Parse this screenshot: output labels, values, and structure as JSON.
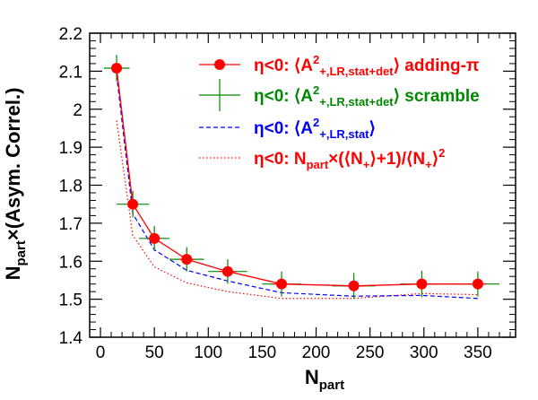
{
  "chart_data": {
    "type": "scatter",
    "xlabel": "N",
    "xlabel_sub": "part",
    "ylabel": "N",
    "ylabel_sub": "part",
    "ylabel_rest": "×(Asym. Correl.)",
    "xlim": [
      -10,
      385
    ],
    "ylim": [
      1.4,
      2.2
    ],
    "xticks": [
      0,
      50,
      100,
      150,
      200,
      250,
      300,
      350
    ],
    "yticks": [
      1.4,
      1.5,
      1.6,
      1.7,
      1.8,
      1.9,
      2.0,
      2.1,
      2.2
    ],
    "ytick_labels": [
      "1.4",
      "1.5",
      "1.6",
      "1.7",
      "1.8",
      "1.9",
      "2",
      "2.1",
      "2.2"
    ],
    "grid": false,
    "legend_position": "top-right",
    "series": [
      {
        "key": "adding",
        "color": "#ff0000",
        "style": "line-marker",
        "legend": {
          "pre": "η<0: ⟨A",
          "sup": "2",
          "sub": "+,LR,stat+det",
          "post": "⟩ adding-π"
        },
        "x": [
          15,
          30,
          50,
          80,
          118,
          168,
          235,
          298,
          350
        ],
        "y": [
          2.108,
          1.75,
          1.66,
          1.605,
          1.573,
          1.54,
          1.535,
          1.54,
          1.54
        ],
        "xerr": [
          3,
          4,
          6,
          7,
          8,
          9,
          10,
          9,
          8
        ]
      },
      {
        "key": "scramble",
        "color": "#008800",
        "style": "errorbar",
        "legend": {
          "pre": "η<0: ⟨A",
          "sup": "2",
          "sub": "+,LR,stat+det",
          "post": "⟩ scramble"
        },
        "x": [
          15,
          30,
          50,
          80,
          118,
          168,
          235,
          298,
          350
        ],
        "y": [
          2.108,
          1.75,
          1.66,
          1.605,
          1.573,
          1.54,
          1.535,
          1.54,
          1.54
        ],
        "yerr": [
          0.035,
          0.035,
          0.033,
          0.032,
          0.032,
          0.033,
          0.034,
          0.035,
          0.033
        ],
        "xerr": [
          12,
          15,
          14,
          16,
          18,
          18,
          20,
          20,
          20
        ]
      },
      {
        "key": "stat",
        "color": "#0000ff",
        "style": "dashed",
        "legend": {
          "pre": "η<0: ⟨A",
          "sup": "2",
          "sub": "+,LR,stat",
          "post": "⟩"
        },
        "x": [
          15,
          30,
          50,
          80,
          118,
          168,
          235,
          298,
          350
        ],
        "y": [
          2.09,
          1.725,
          1.63,
          1.576,
          1.548,
          1.517,
          1.508,
          1.51,
          1.502
        ]
      },
      {
        "key": "ratio",
        "color": "#ff0000",
        "style": "dotted",
        "legend": {
          "pre": "η<0: N",
          "sub": "part",
          "post": "×(⟨N",
          "sub2": "+",
          "post2": "⟩+1)/⟨N",
          "sub3": "+",
          "post3": "⟩",
          "sup": "2"
        },
        "x": [
          15,
          30,
          50,
          80,
          118,
          168,
          235,
          298,
          350
        ],
        "y": [
          1.97,
          1.668,
          1.585,
          1.543,
          1.52,
          1.502,
          1.502,
          1.515,
          1.512
        ]
      }
    ]
  }
}
